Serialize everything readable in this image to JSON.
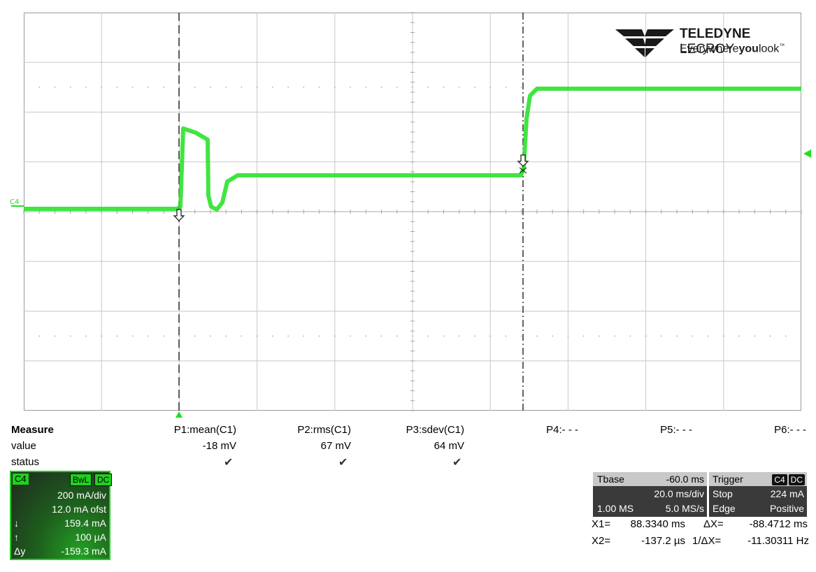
{
  "logo": {
    "brand_bold": "TELEDYNE",
    "brand_light": "LECROY",
    "tagline_pre": "Everywhere",
    "tagline_bold": "you",
    "tagline_post": "look",
    "tagline_tm": "™"
  },
  "trace": {
    "channel_label": "C4",
    "color": "#20e020"
  },
  "measure": {
    "header": "Measure",
    "row_value": "value",
    "row_status": "status",
    "params": [
      {
        "name": "P1:mean(C1)",
        "value": "-18 mV",
        "status": "✔"
      },
      {
        "name": "P2:rms(C1)",
        "value": "67 mV",
        "status": "✔"
      },
      {
        "name": "P3:sdev(C1)",
        "value": "64 mV",
        "status": "✔"
      },
      {
        "name": "P4:- - -",
        "value": "",
        "status": ""
      },
      {
        "name": "P5:- - -",
        "value": "",
        "status": ""
      },
      {
        "name": "P6:- - -",
        "value": "",
        "status": ""
      }
    ]
  },
  "channel_box": {
    "tag": "C4",
    "bwl": "BwL",
    "coupling": "DC",
    "scale": "200 mA/div",
    "offset": "12.0 mA ofst",
    "cursor_down_symbol": "↓",
    "cursor_down": "159.4 mA",
    "cursor_up_symbol": "↑",
    "cursor_up": "100 µA",
    "delta_symbol": "Δy",
    "delta": "-159.3 mA"
  },
  "timebase": {
    "label": "Tbase",
    "delay": "-60.0 ms",
    "per_div": "20.0 ms/div",
    "samples": "1.00 MS",
    "rate": "5.0 MS/s"
  },
  "trigger": {
    "label": "Trigger",
    "source": "C4",
    "coupling": "DC",
    "mode": "Stop",
    "level": "224 mA",
    "type": "Edge",
    "slope": "Positive"
  },
  "cursors": {
    "x1_label": "X1=",
    "x1_value": "88.3340 ms",
    "dx_label": "ΔX=",
    "dx_value": "-88.4712 ms",
    "x2_label": "X2=",
    "x2_value": "-137.2 µs",
    "inv_dx_label": "1/ΔX=",
    "inv_dx_value": "-11.30311 Hz"
  }
}
